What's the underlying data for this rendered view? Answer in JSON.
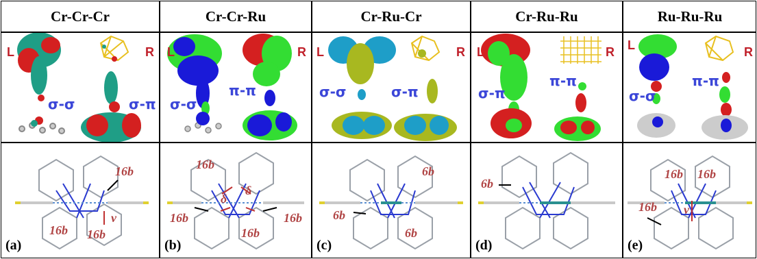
{
  "columns": [
    {
      "header": "Cr-Cr-Cr",
      "left_label": "L",
      "right_label": "R",
      "sym_left": "σ-σ",
      "sym_right": "σ-π",
      "panel": "(a)",
      "labels": [
        "16b",
        "16b",
        "16b",
        "ν"
      ]
    },
    {
      "header": "Cr-Cr-Ru",
      "left_label": "L",
      "right_label": "R",
      "sym_left": "σ-σ",
      "sym_right": "π-π",
      "panel": "(b)",
      "labels": [
        "16b",
        "16b",
        "16b",
        "16b",
        "δ",
        "δ"
      ]
    },
    {
      "header": "Cr-Ru-Cr",
      "left_label": "L",
      "right_label": "R",
      "sym_left": "σ-σ",
      "sym_right": "σ-π",
      "panel": "(c)",
      "labels": [
        "6b",
        "6b",
        "6b"
      ]
    },
    {
      "header": "Cr-Ru-Ru",
      "left_label": "L",
      "right_label": "R",
      "sym_left": "σ-π",
      "sym_right": "π-π",
      "panel": "(d)",
      "labels": [
        "6b"
      ]
    },
    {
      "header": "Ru-Ru-Ru",
      "left_label": "L",
      "right_label": "R",
      "sym_left": "σ-σ",
      "sym_right": "π-π",
      "panel": "(e)",
      "labels": [
        "16b",
        "16b",
        "16b",
        "ν"
      ]
    }
  ],
  "colors": {
    "red_lobe": "#d42020",
    "teal_lobe": "#1f9e86",
    "blue_lobe": "#1a1ad8",
    "green_lobe": "#33dd33",
    "cyan_lobe": "#1e9ec8",
    "olive_lobe": "#a8b820",
    "gold_lattice": "#e8c020",
    "label_red": "#b04444",
    "symmetry_blue": "#3b46d8"
  }
}
